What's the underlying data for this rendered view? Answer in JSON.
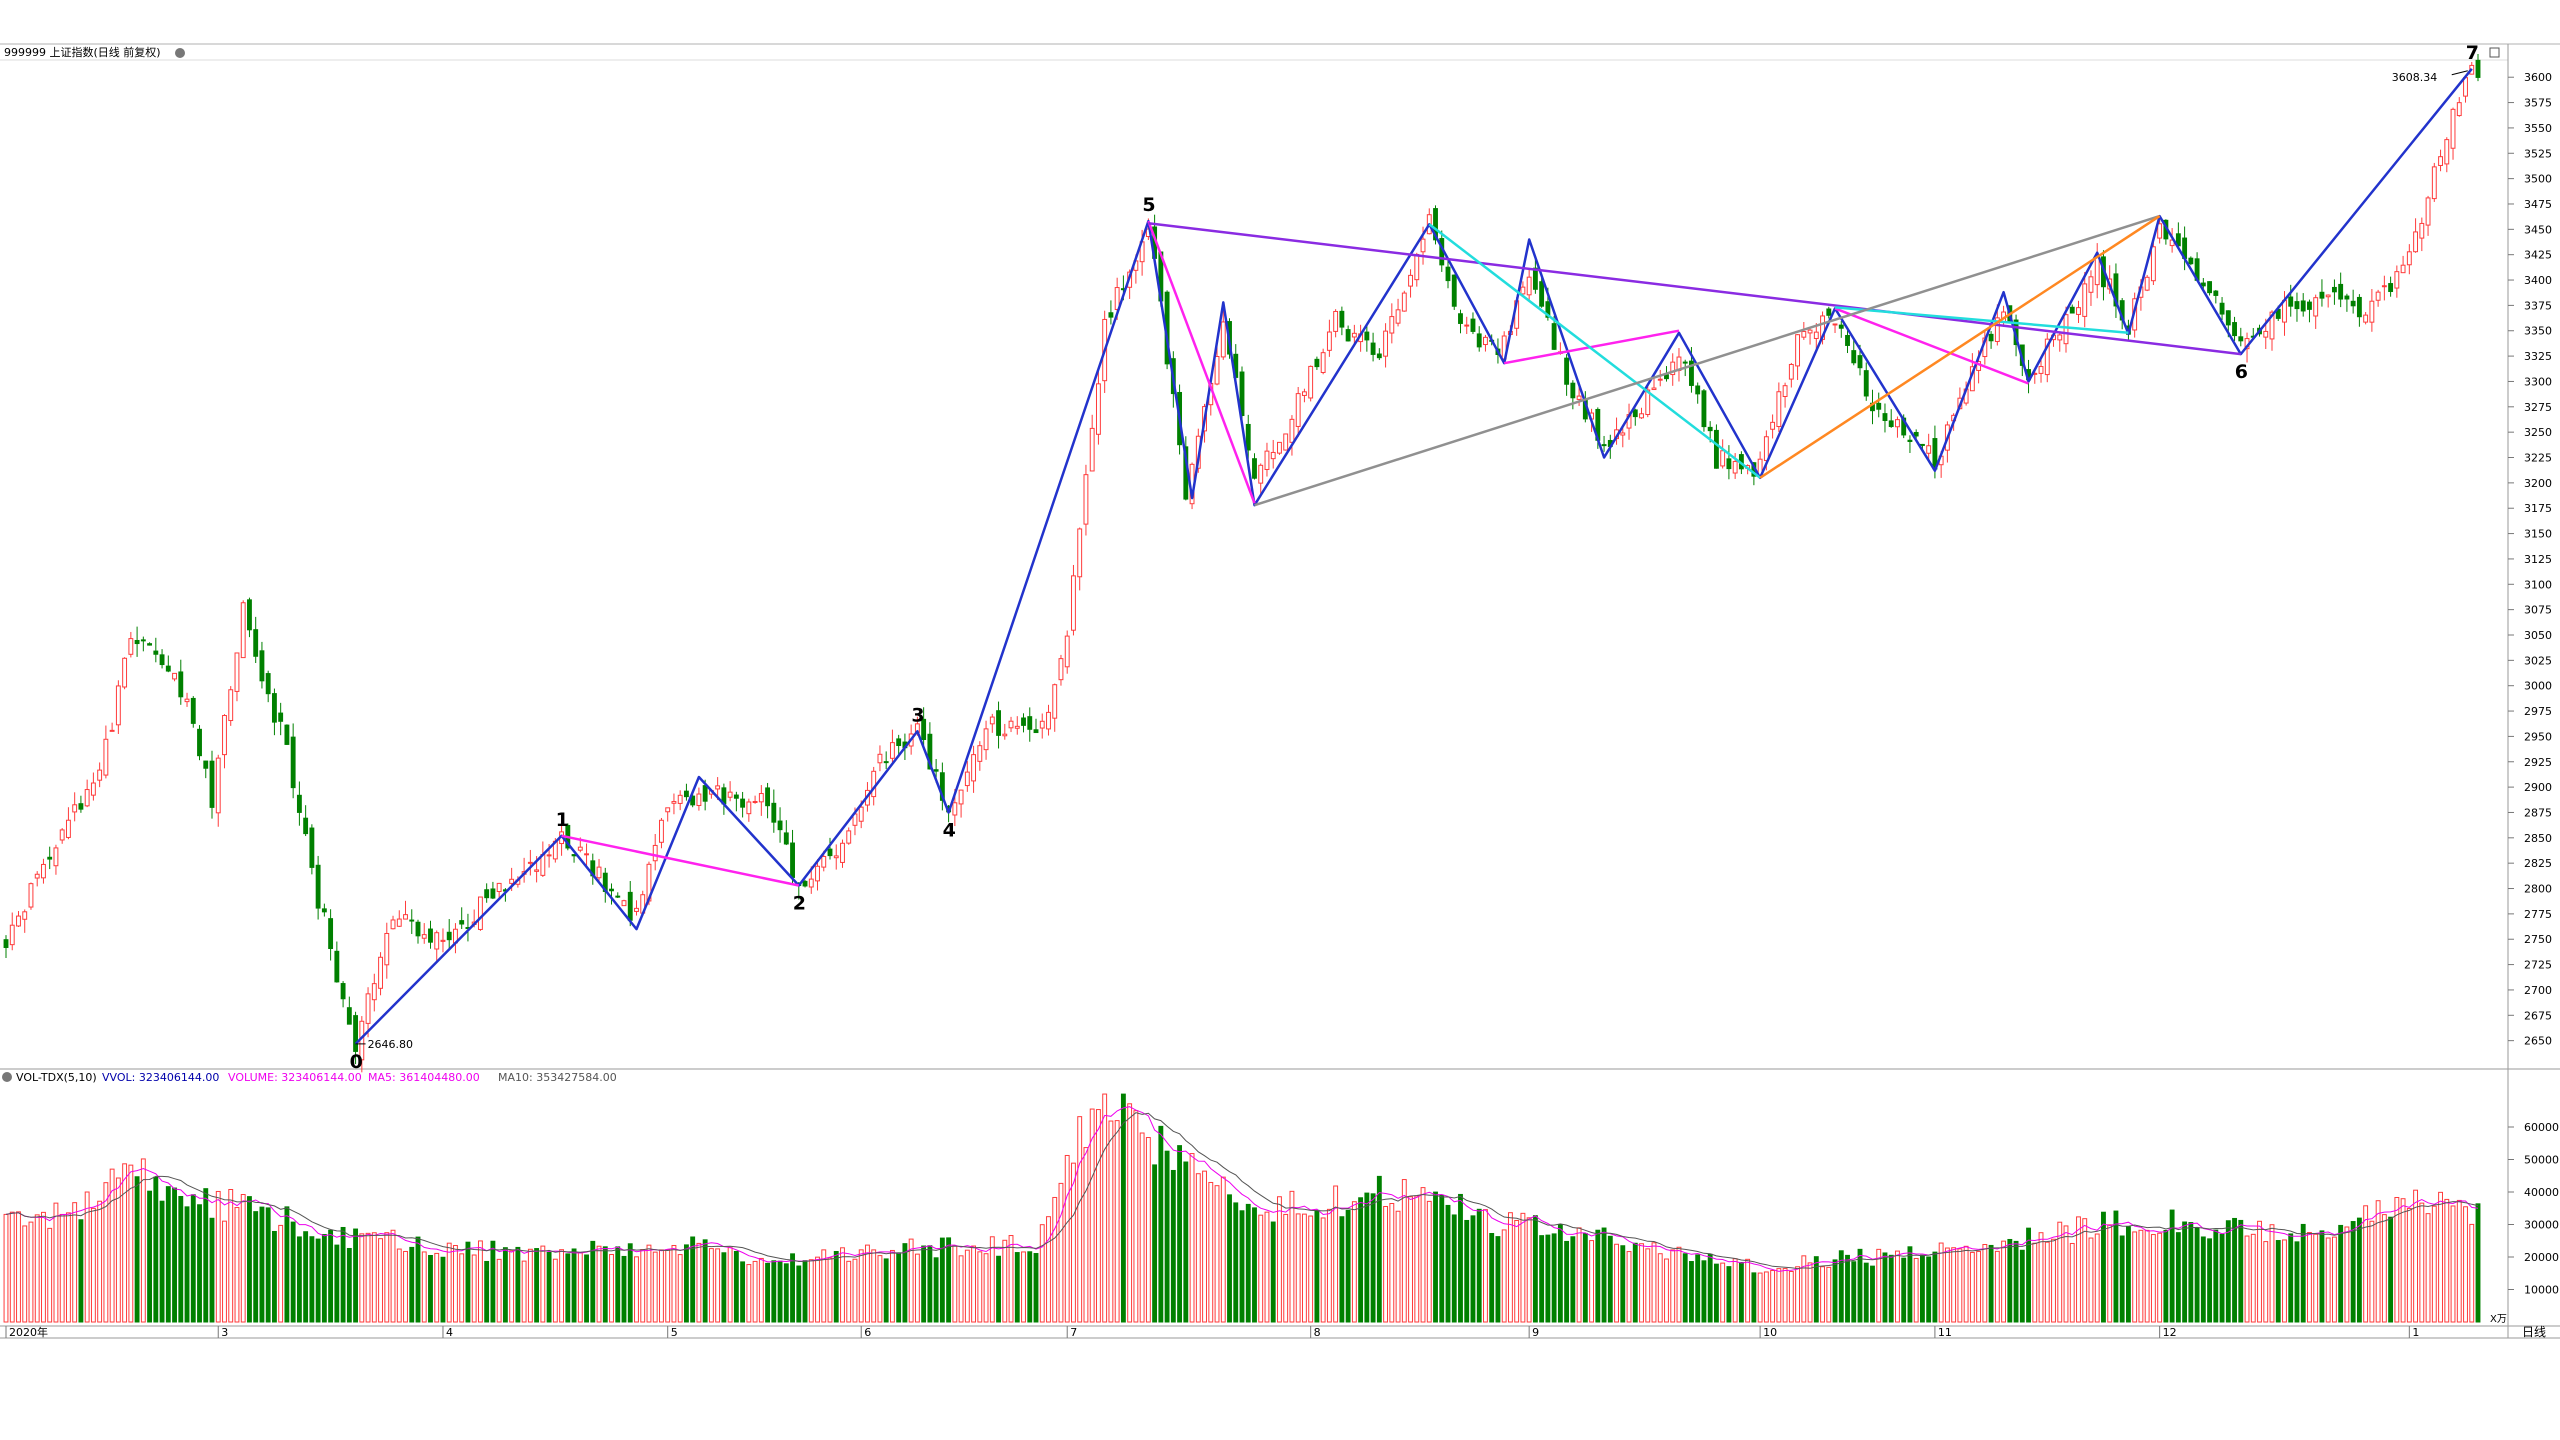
{
  "header": {
    "title": "999999 上证指数(日线 前复权)"
  },
  "volume_header": {
    "indicator": "VOL-TDX(5,10)",
    "vvol": "VVOL: 323406144.00",
    "volume": "VOLUME: 323406144.00",
    "ma5": "MA5: 361404480.00",
    "ma10": "MA10: 353427584.00"
  },
  "colors": {
    "up": "#ff3b3b",
    "down": "#008000",
    "wave": "#2233cc",
    "magenta": "#ff22ee",
    "purple": "#8a2be2",
    "cyan": "#22dddd",
    "gray": "#909090",
    "orange": "#ff8822"
  },
  "chart_data": {
    "type": "candlestick",
    "price_axis": {
      "ylim": [
        2625,
        3615
      ],
      "ticks": [
        2650,
        2675,
        2700,
        2725,
        2750,
        2775,
        2800,
        2825,
        2850,
        2875,
        2900,
        2925,
        2950,
        2975,
        3000,
        3025,
        3050,
        3075,
        3100,
        3125,
        3150,
        3175,
        3200,
        3225,
        3250,
        3275,
        3300,
        3325,
        3350,
        3375,
        3400,
        3425,
        3450,
        3475,
        3500,
        3525,
        3550,
        3575,
        3600
      ]
    },
    "volume_axis": {
      "ylim": [
        0,
        72000
      ],
      "ticks": [
        10000,
        20000,
        30000,
        40000,
        50000,
        60000
      ],
      "unit": "X万"
    },
    "time_labels": [
      {
        "label": "2020年",
        "index": 0
      },
      {
        "label": "3",
        "index": 34
      },
      {
        "label": "4",
        "index": 70
      },
      {
        "label": "5",
        "index": 106
      },
      {
        "label": "6",
        "index": 137
      },
      {
        "label": "7",
        "index": 170
      },
      {
        "label": "8",
        "index": 209
      },
      {
        "label": "9",
        "index": 244
      },
      {
        "label": "10",
        "index": 281
      },
      {
        "label": "11",
        "index": 309
      },
      {
        "label": "12",
        "index": 345
      },
      {
        "label": "1",
        "index": 385
      }
    ],
    "period_label": "日线",
    "annotations": {
      "low_label": "2646.80",
      "high_label": "3608.34"
    },
    "waves": [
      {
        "label": "0",
        "index": 56,
        "price": 2646.8
      },
      {
        "label": "1",
        "index": 89,
        "price": 2852
      },
      {
        "label": "2",
        "index": 127,
        "price": 2803
      },
      {
        "label": "3",
        "index": 146,
        "price": 2955
      },
      {
        "label": "4",
        "index": 151,
        "price": 2875
      },
      {
        "label": "5",
        "index": 183,
        "price": 3458
      },
      {
        "label": "6",
        "index": 358,
        "price": 3327
      },
      {
        "label": "7",
        "index": 395,
        "price": 3608.34
      }
    ],
    "lines": [
      {
        "color": "wave",
        "points": [
          [
            56,
            2646.8
          ],
          [
            89,
            2852
          ],
          [
            101,
            2760
          ],
          [
            111,
            2910
          ],
          [
            127,
            2803
          ],
          [
            146,
            2955
          ],
          [
            151,
            2875
          ],
          [
            183,
            3458
          ],
          [
            190,
            3185
          ],
          [
            195,
            3378
          ],
          [
            200,
            3178
          ],
          [
            228,
            3455
          ],
          [
            240,
            3318
          ],
          [
            244,
            3440
          ],
          [
            256,
            3225
          ],
          [
            268,
            3348
          ],
          [
            281,
            3205
          ],
          [
            293,
            3372
          ],
          [
            309,
            3212
          ],
          [
            320,
            3388
          ],
          [
            324,
            3300
          ],
          [
            335,
            3427
          ],
          [
            340,
            3347
          ],
          [
            345,
            3463
          ],
          [
            358,
            3327
          ],
          [
            395,
            3608.34
          ]
        ]
      },
      {
        "color": "magenta",
        "points": [
          [
            89,
            2852
          ],
          [
            127,
            2803
          ]
        ]
      },
      {
        "color": "magenta",
        "points": [
          [
            183,
            3458
          ],
          [
            200,
            3180
          ]
        ]
      },
      {
        "color": "magenta",
        "points": [
          [
            240,
            3318
          ],
          [
            268,
            3350
          ]
        ]
      },
      {
        "color": "magenta",
        "points": [
          [
            293,
            3372
          ],
          [
            324,
            3298
          ]
        ]
      },
      {
        "color": "purple",
        "points": [
          [
            183,
            3456
          ],
          [
            358,
            3327
          ]
        ]
      },
      {
        "color": "cyan",
        "points": [
          [
            228,
            3455
          ],
          [
            281,
            3205
          ]
        ]
      },
      {
        "color": "cyan",
        "points": [
          [
            293,
            3373
          ],
          [
            340,
            3348
          ]
        ]
      },
      {
        "color": "gray",
        "points": [
          [
            200,
            3178
          ],
          [
            345,
            3463
          ]
        ]
      },
      {
        "color": "orange",
        "points": [
          [
            281,
            3205
          ],
          [
            345,
            3463
          ]
        ]
      }
    ],
    "anchors": [
      [
        0,
        2745
      ],
      [
        8,
        2850
      ],
      [
        15,
        2910
      ],
      [
        20,
        3050
      ],
      [
        28,
        3000
      ],
      [
        33,
        2885
      ],
      [
        38,
        3075
      ],
      [
        45,
        2935
      ],
      [
        50,
        2790
      ],
      [
        56,
        2646.8
      ],
      [
        62,
        2770
      ],
      [
        70,
        2752
      ],
      [
        80,
        2800
      ],
      [
        89,
        2852
      ],
      [
        101,
        2770
      ],
      [
        106,
        2880
      ],
      [
        112,
        2895
      ],
      [
        122,
        2886
      ],
      [
        127,
        2803
      ],
      [
        135,
        2850
      ],
      [
        140,
        2925
      ],
      [
        146,
        2955
      ],
      [
        151,
        2875
      ],
      [
        158,
        2960
      ],
      [
        166,
        2960
      ],
      [
        170,
        3055
      ],
      [
        176,
        3355
      ],
      [
        183,
        3458
      ],
      [
        189,
        3190
      ],
      [
        195,
        3355
      ],
      [
        200,
        3205
      ],
      [
        207,
        3280
      ],
      [
        213,
        3360
      ],
      [
        220,
        3325
      ],
      [
        228,
        3455
      ],
      [
        234,
        3350
      ],
      [
        240,
        3335
      ],
      [
        244,
        3410
      ],
      [
        250,
        3305
      ],
      [
        256,
        3235
      ],
      [
        262,
        3275
      ],
      [
        268,
        3330
      ],
      [
        274,
        3225
      ],
      [
        281,
        3215
      ],
      [
        287,
        3345
      ],
      [
        293,
        3365
      ],
      [
        300,
        3265
      ],
      [
        306,
        3240
      ],
      [
        309,
        3220
      ],
      [
        315,
        3305
      ],
      [
        320,
        3375
      ],
      [
        324,
        3305
      ],
      [
        330,
        3360
      ],
      [
        335,
        3415
      ],
      [
        340,
        3355
      ],
      [
        345,
        3450
      ],
      [
        352,
        3395
      ],
      [
        358,
        3335
      ],
      [
        366,
        3375
      ],
      [
        372,
        3385
      ],
      [
        378,
        3370
      ],
      [
        385,
        3420
      ],
      [
        391,
        3545
      ],
      [
        395,
        3608.34
      ]
    ],
    "volume_anchors": [
      [
        0,
        29000
      ],
      [
        10,
        33000
      ],
      [
        18,
        46000
      ],
      [
        25,
        42000
      ],
      [
        32,
        38000
      ],
      [
        42,
        33000
      ],
      [
        55,
        26000
      ],
      [
        65,
        24000
      ],
      [
        75,
        22000
      ],
      [
        85,
        21000
      ],
      [
        95,
        23000
      ],
      [
        110,
        23000
      ],
      [
        125,
        19000
      ],
      [
        135,
        21000
      ],
      [
        150,
        23000
      ],
      [
        165,
        24000
      ],
      [
        172,
        60000
      ],
      [
        178,
        66000
      ],
      [
        183,
        55000
      ],
      [
        192,
        44000
      ],
      [
        200,
        32000
      ],
      [
        210,
        37000
      ],
      [
        222,
        40000
      ],
      [
        230,
        38000
      ],
      [
        240,
        30000
      ],
      [
        250,
        27000
      ],
      [
        260,
        24000
      ],
      [
        270,
        20000
      ],
      [
        280,
        17000
      ],
      [
        290,
        19000
      ],
      [
        300,
        20000
      ],
      [
        310,
        22000
      ],
      [
        320,
        25000
      ],
      [
        330,
        28000
      ],
      [
        340,
        31000
      ],
      [
        350,
        30000
      ],
      [
        360,
        27000
      ],
      [
        370,
        28000
      ],
      [
        380,
        33000
      ],
      [
        390,
        38000
      ],
      [
        395,
        32000
      ]
    ]
  }
}
